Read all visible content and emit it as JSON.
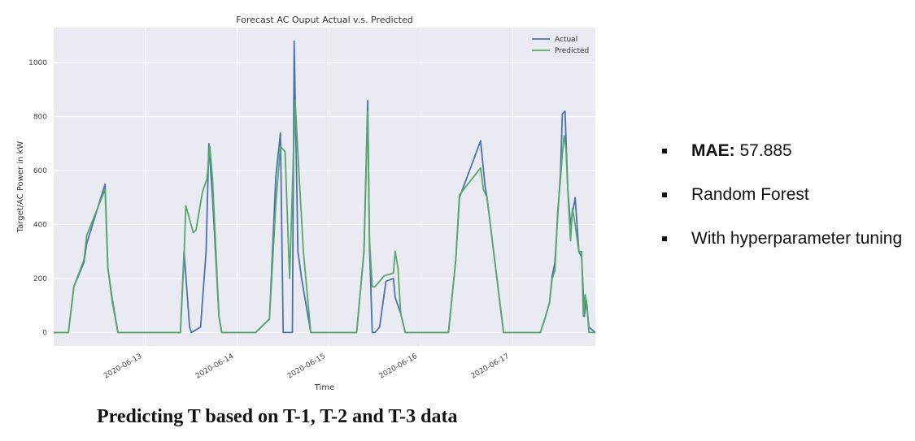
{
  "chart_data": {
    "type": "line",
    "title": "Forecast AC Ouput Actual v.s. Predicted",
    "xlabel": "Time",
    "ylabel": "Target/AC Power in kW",
    "x_ticks": [
      "2020-06-13",
      "2020-06-14",
      "2020-06-15",
      "2020-06-16",
      "2020-06-17"
    ],
    "y_ticks": [
      0,
      200,
      400,
      600,
      800,
      1000
    ],
    "xlim": [
      12.0,
      17.9
    ],
    "ylim": [
      -50,
      1130
    ],
    "grid": true,
    "legend_position": "top-right",
    "series": [
      {
        "name": "Actual",
        "color": "#4c72b0",
        "x": [
          12.0,
          12.16,
          12.22,
          12.33,
          12.36,
          12.56,
          12.59,
          12.64,
          12.7,
          13.0,
          13.05,
          13.38,
          13.42,
          13.48,
          13.5,
          13.6,
          13.66,
          13.69,
          13.73,
          13.8,
          13.83,
          14.0,
          14.2,
          14.35,
          14.42,
          14.47,
          14.5,
          14.6,
          14.62,
          14.66,
          14.7,
          14.8,
          15.0,
          15.3,
          15.38,
          15.42,
          15.44,
          15.47,
          15.5,
          15.55,
          15.62,
          15.7,
          15.72,
          15.78,
          15.83,
          15.9,
          16.0,
          16.3,
          16.38,
          16.42,
          16.65,
          16.7,
          16.72,
          16.9,
          17.0,
          17.2,
          17.3,
          17.35,
          17.4,
          17.43,
          17.46,
          17.49,
          17.52,
          17.54,
          17.57,
          17.6,
          17.63,
          17.68,
          17.72,
          17.75,
          17.78,
          17.8,
          17.83,
          17.9
        ],
        "y": [
          0,
          0,
          170,
          260,
          330,
          550,
          240,
          120,
          0,
          0,
          0,
          0,
          300,
          20,
          0,
          20,
          300,
          700,
          500,
          60,
          0,
          0,
          0,
          50,
          580,
          740,
          0,
          0,
          1080,
          300,
          200,
          0,
          0,
          0,
          300,
          860,
          320,
          0,
          0,
          20,
          190,
          200,
          130,
          70,
          0,
          0,
          0,
          0,
          270,
          500,
          710,
          540,
          500,
          0,
          0,
          0,
          0,
          50,
          110,
          210,
          260,
          430,
          590,
          810,
          820,
          530,
          400,
          500,
          300,
          280,
          60,
          120,
          20,
          0
        ]
      },
      {
        "name": "Predicted",
        "color": "#55a868",
        "x": [
          12.0,
          12.16,
          12.22,
          12.33,
          12.36,
          12.56,
          12.59,
          12.64,
          12.7,
          13.0,
          13.05,
          13.38,
          13.42,
          13.44,
          13.52,
          13.55,
          13.62,
          13.67,
          13.7,
          13.73,
          13.8,
          13.83,
          14.0,
          14.2,
          14.35,
          14.42,
          14.47,
          14.52,
          14.57,
          14.63,
          14.67,
          14.72,
          14.8,
          15.0,
          15.3,
          15.38,
          15.42,
          15.44,
          15.47,
          15.5,
          15.6,
          15.7,
          15.72,
          15.75,
          15.78,
          15.83,
          15.9,
          16.0,
          16.3,
          16.38,
          16.42,
          16.65,
          16.68,
          16.72,
          16.9,
          17.0,
          17.2,
          17.3,
          17.35,
          17.4,
          17.43,
          17.46,
          17.49,
          17.52,
          17.54,
          17.56,
          17.58,
          17.6,
          17.63,
          17.65,
          17.68,
          17.72,
          17.75,
          17.77,
          17.79,
          17.81,
          17.83,
          17.9
        ],
        "y": [
          0,
          0,
          170,
          270,
          360,
          530,
          240,
          110,
          0,
          0,
          0,
          0,
          280,
          470,
          370,
          380,
          520,
          570,
          690,
          570,
          60,
          0,
          0,
          0,
          50,
          480,
          690,
          670,
          200,
          860,
          600,
          300,
          0,
          0,
          0,
          300,
          820,
          340,
          170,
          170,
          210,
          220,
          300,
          240,
          70,
          0,
          0,
          0,
          0,
          270,
          510,
          610,
          530,
          500,
          0,
          0,
          0,
          0,
          50,
          110,
          200,
          230,
          450,
          570,
          660,
          730,
          680,
          530,
          340,
          460,
          400,
          300,
          300,
          60,
          140,
          100,
          0,
          0
        ]
      }
    ]
  },
  "caption": "Predicting T based on T-1, T-2 and T-3 data",
  "bullets": [
    {
      "label": "MAE:",
      "value": " 57.885"
    },
    {
      "label": "",
      "value": "Random Forest"
    },
    {
      "label": "",
      "value": "With hyperparameter tuning"
    }
  ]
}
